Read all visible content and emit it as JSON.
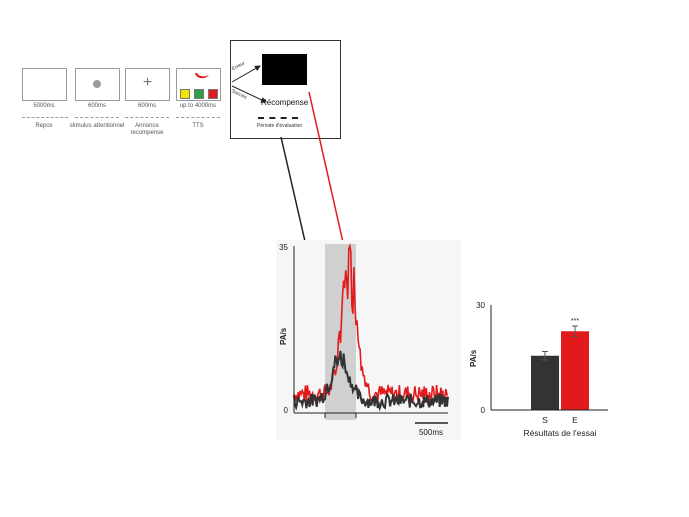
{
  "trial_sequence": {
    "steps": [
      {
        "duration": "5000ms",
        "label": "Repos"
      },
      {
        "duration": "600ms",
        "label": "stimulus attentionnel"
      },
      {
        "duration": "600ms",
        "label": "Annonce\nrecompense"
      },
      {
        "duration": "up to 4000ms",
        "label": "TTS"
      }
    ],
    "plus_symbol": "+"
  },
  "feedback": {
    "error_label": "Erreur",
    "success_label": "Succès",
    "reward_label": "Récompense",
    "evaluation_label": "Période d'évaluation"
  },
  "colors": {
    "success": "#333333",
    "error": "#e31a1c",
    "shade": "#d0d0d0",
    "target_yellow": "#f2e600",
    "target_green": "#2e9e48",
    "target_red": "#e31a1c"
  },
  "psth": {
    "ylabel": "PA/s",
    "y_ticks": [
      "35",
      "0"
    ],
    "scale_bar_label": "500ms",
    "ylim": [
      0,
      35
    ]
  },
  "chart_data": {
    "type": "bar",
    "categories": [
      "S",
      "E"
    ],
    "values": [
      15.5,
      22.5
    ],
    "errors": [
      1.2,
      1.5
    ],
    "colors": [
      "#333333",
      "#e31a1c"
    ],
    "significance": "***",
    "xlabel": "Résultats de l'essai",
    "ylabel": "PA/s",
    "y_ticks": [
      "30",
      "0"
    ],
    "ylim": [
      0,
      30
    ]
  }
}
